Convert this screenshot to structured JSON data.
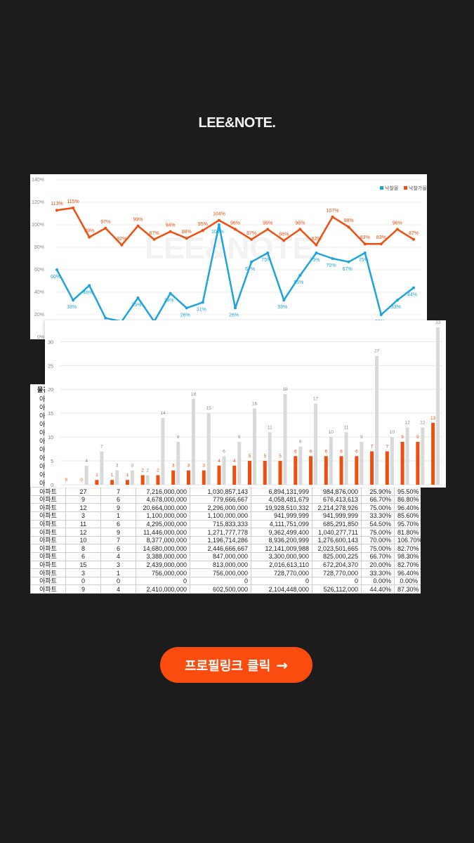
{
  "brand": {
    "logo": "LEE&NOTE."
  },
  "cta": {
    "label": "프로필링크 클릭",
    "arrow_icon": "arrow-right-icon",
    "color": "#fa4c0e"
  },
  "colors": {
    "background": "#1c1c1c",
    "rate_line": "#1ea4dc",
    "price_line": "#f04e0f",
    "bar_orange": "#f04e0f",
    "bar_gray": "#d9d9d9"
  },
  "chart_data": [
    {
      "type": "line",
      "yticks": [
        "0%",
        "20%",
        "40%",
        "60%",
        "80%",
        "100%",
        "120%",
        "140%"
      ],
      "ylim": [
        0,
        140
      ],
      "legend_position": "top-right",
      "watermark": "LEE&NOTE",
      "series": [
        {
          "name": "낙찰율",
          "color": "#1ea4dc",
          "values": [
            60,
            33,
            46,
            17,
            14,
            35,
            14,
            39,
            26,
            31,
            100,
            26,
            67,
            75,
            33,
            55,
            75,
            70,
            67,
            75,
            20,
            33,
            44
          ],
          "labels": [
            "60%",
            "33%",
            "46%",
            "17%",
            "14%",
            "35%",
            "14%",
            "39%",
            "26%",
            "31%",
            "100%",
            "26%",
            "67%",
            "75%",
            "33%",
            "55%",
            "75%",
            "70%",
            "67%",
            "75%",
            "20%",
            "33%",
            "44%"
          ]
        },
        {
          "name": "낙찰가율",
          "color": "#f04e0f",
          "values": [
            113,
            115,
            89,
            97,
            82,
            99,
            87,
            94,
            88,
            95,
            104,
            96,
            87,
            96,
            86,
            96,
            82,
            107,
            98,
            83,
            83,
            96,
            87
          ],
          "labels": [
            "113%",
            "115%",
            "89%",
            "97%",
            "82%",
            "99%",
            "87%",
            "94%",
            "88%",
            "95%",
            "104%",
            "96%",
            "87%",
            "96%",
            "86%",
            "96%",
            "82%",
            "107%",
            "98%",
            "83%",
            "83%",
            "96%",
            "87%"
          ]
        }
      ]
    },
    {
      "type": "bar",
      "yticks": [
        "0",
        "5",
        "10",
        "15",
        "20",
        "25",
        "30"
      ],
      "ylim": [
        0,
        33
      ],
      "series": [
        {
          "color": "#f04e0f",
          "values": [
            0,
            0,
            1,
            1,
            1,
            2,
            2,
            3,
            3,
            3,
            4,
            4,
            5,
            5,
            5,
            6,
            6,
            6,
            6,
            6,
            7,
            7,
            9,
            9,
            13
          ]
        },
        {
          "color": "#d9d9d9",
          "values": [
            0,
            4,
            7,
            3,
            3,
            2,
            14,
            9,
            18,
            15,
            6,
            9,
            16,
            11,
            19,
            8,
            17,
            10,
            11,
            9,
            27,
            10,
            12,
            12,
            33
          ]
        }
      ]
    },
    {
      "type": "table",
      "header_fragment": "물건",
      "rows": [
        [
          "아파트",
          "27",
          "7",
          "7,216,000,000",
          "1,030,857,143",
          "6,894,131,999",
          "984,876,000",
          "25.90%",
          "95.50%"
        ],
        [
          "아파트",
          "9",
          "6",
          "4,678,000,000",
          "779,666,667",
          "4,058,481,679",
          "676,413,613",
          "66.70%",
          "86.80%"
        ],
        [
          "아파트",
          "12",
          "9",
          "20,664,000,000",
          "2,296,000,000",
          "19,928,510,332",
          "2,214,278,926",
          "75.00%",
          "96.40%"
        ],
        [
          "아파트",
          "3",
          "1",
          "1,100,000,000",
          "1,100,000,000",
          "941,999,999",
          "941,999,999",
          "33.30%",
          "85.60%"
        ],
        [
          "아파트",
          "11",
          "6",
          "4,295,000,000",
          "715,833,333",
          "4,111,751,099",
          "685,291,850",
          "54.50%",
          "95.70%"
        ],
        [
          "아파트",
          "12",
          "9",
          "11,446,000,000",
          "1,271,777,778",
          "9,362,499,400",
          "1,040,277,711",
          "75.00%",
          "81.80%"
        ],
        [
          "아파트",
          "10",
          "7",
          "8,377,000,000",
          "1,196,714,286",
          "8,936,200,999",
          "1,276,600,143",
          "70.00%",
          "106.70%"
        ],
        [
          "아파트",
          "8",
          "6",
          "14,680,000,000",
          "2,446,666,667",
          "12,141,009,988",
          "2,023,501,665",
          "75.00%",
          "82.70%"
        ],
        [
          "아파트",
          "6",
          "4",
          "3,388,000,000",
          "847,000,000",
          "3,300,000,900",
          "825,000,225",
          "66.70%",
          "98.30%"
        ],
        [
          "아파트",
          "15",
          "3",
          "2,439,000,000",
          "813,000,000",
          "2,016,613,110",
          "672,204,370",
          "20.00%",
          "82.70%"
        ],
        [
          "아파트",
          "3",
          "1",
          "756,000,000",
          "756,000,000",
          "728,770,000",
          "728,770,000",
          "33.30%",
          "96.40%"
        ],
        [
          "아파트",
          "0",
          "0",
          "0",
          "0",
          "0",
          "0",
          "0.00%",
          "0.00%"
        ],
        [
          "아파트",
          "9",
          "4",
          "2,410,000,000",
          "602,500,000",
          "2,104,448,000",
          "526,112,000",
          "44.40%",
          "87.30%"
        ]
      ],
      "hidden_rows_label": "아"
    }
  ]
}
